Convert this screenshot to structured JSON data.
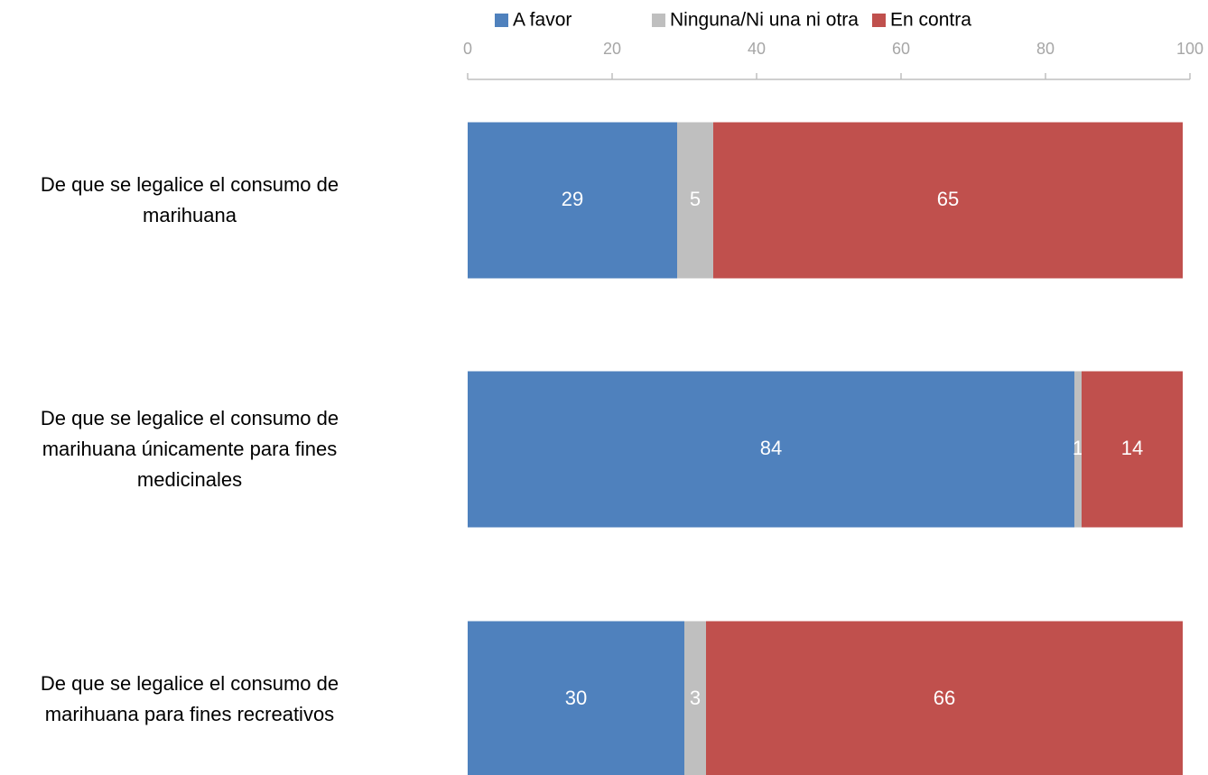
{
  "chart_data": {
    "type": "stacked_barh",
    "categories": [
      "De que se legalice el consumo de marihuana",
      "De que se legalice el consumo de marihuana únicamente para fines medicinales",
      "De que se legalice el consumo de marihuana para fines recreativos"
    ],
    "series": [
      {
        "name": "A favor",
        "color": "#4f81bd",
        "values": [
          29,
          84,
          30
        ]
      },
      {
        "name": "Ninguna/Ni una ni otra",
        "color": "#bfbfbf",
        "values": [
          5,
          1,
          3
        ]
      },
      {
        "name": "En contra",
        "color": "#c0504d",
        "values": [
          65,
          14,
          66
        ]
      }
    ],
    "xlim": [
      0,
      100
    ],
    "xticks": [
      0,
      20,
      40,
      60,
      80,
      100
    ],
    "legend": "top"
  }
}
